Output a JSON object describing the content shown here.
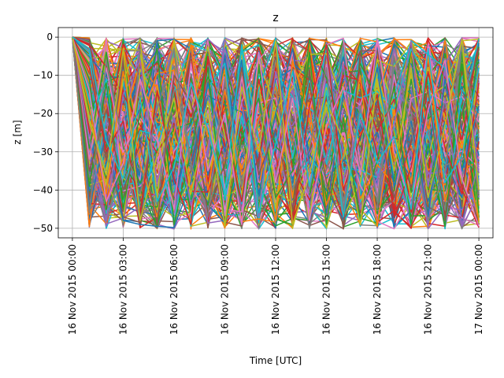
{
  "chart_data": {
    "type": "line",
    "title": "z",
    "xlabel": "Time  [UTC]",
    "ylabel": "z  [m]",
    "x_axis": {
      "start": "2015-11-16T00:00:00Z",
      "end": "2015-11-17T00:00:00Z",
      "ticks": [
        {
          "t": "2015-11-16T00:00:00Z",
          "label": "16 Nov 2015 00:00"
        },
        {
          "t": "2015-11-16T03:00:00Z",
          "label": "16 Nov 2015 03:00"
        },
        {
          "t": "2015-11-16T06:00:00Z",
          "label": "16 Nov 2015 06:00"
        },
        {
          "t": "2015-11-16T09:00:00Z",
          "label": "16 Nov 2015 09:00"
        },
        {
          "t": "2015-11-16T12:00:00Z",
          "label": "16 Nov 2015 12:00"
        },
        {
          "t": "2015-11-16T15:00:00Z",
          "label": "16 Nov 2015 15:00"
        },
        {
          "t": "2015-11-16T18:00:00Z",
          "label": "16 Nov 2015 18:00"
        },
        {
          "t": "2015-11-16T21:00:00Z",
          "label": "16 Nov 2015 21:00"
        },
        {
          "t": "2015-11-17T00:00:00Z",
          "label": "17 Nov 2015 00:00"
        }
      ],
      "tick_label_rotation": "vertical",
      "range": [
        "2015-11-15T23:10:00Z",
        "2015-11-17T00:50:00Z"
      ]
    },
    "y_axis": {
      "ticks": [
        0,
        -10,
        -20,
        -30,
        -40,
        -50
      ],
      "tick_labels": [
        "0",
        "−10",
        "−20",
        "−30",
        "−40",
        "−50"
      ],
      "ylim": [
        -52.5,
        2.5
      ]
    },
    "grid": true,
    "legend": "none",
    "palette": [
      "#1f77b4",
      "#ff7f0e",
      "#2ca02c",
      "#d62728",
      "#9467bd",
      "#8c564b",
      "#e377c2",
      "#7f7f7f",
      "#bcbd22",
      "#17becf"
    ],
    "series_description": "Many hundreds of particle trajectories, all starting at z = 0 m at 16 Nov 2015 00:00 and spanning the full range 0 to −50 m thereafter; sampled hourly.",
    "sample_times": [
      "2015-11-16T00:00:00Z",
      "2015-11-16T01:00:00Z",
      "2015-11-16T02:00:00Z",
      "2015-11-16T03:00:00Z",
      "2015-11-16T04:00:00Z",
      "2015-11-16T05:00:00Z",
      "2015-11-16T06:00:00Z",
      "2015-11-16T07:00:00Z",
      "2015-11-16T08:00:00Z",
      "2015-11-16T09:00:00Z",
      "2015-11-16T10:00:00Z",
      "2015-11-16T11:00:00Z",
      "2015-11-16T12:00:00Z",
      "2015-11-16T13:00:00Z",
      "2015-11-16T14:00:00Z",
      "2015-11-16T15:00:00Z",
      "2015-11-16T16:00:00Z",
      "2015-11-16T17:00:00Z",
      "2015-11-16T18:00:00Z",
      "2015-11-16T19:00:00Z",
      "2015-11-16T20:00:00Z",
      "2015-11-16T21:00:00Z",
      "2015-11-16T22:00:00Z",
      "2015-11-16T23:00:00Z",
      "2015-11-17T00:00:00Z"
    ],
    "series": [
      {
        "color": "#1f77b4",
        "values": [
          0,
          -44.5,
          -25,
          -48,
          -49,
          -49.5,
          -49.8,
          -38,
          -12,
          -30,
          -6,
          -41,
          -20,
          -3,
          -33,
          -46,
          -15,
          -27,
          -8,
          -39,
          -22,
          -47,
          -11,
          -35,
          -18
        ]
      },
      {
        "color": "#ff7f0e",
        "values": [
          0,
          -18,
          -41,
          -9,
          -33,
          -47,
          -25,
          -2,
          -40,
          -14,
          -36,
          -28,
          -48,
          -6,
          -22,
          -44,
          -31,
          -10,
          -49.5,
          -19,
          -38,
          -5,
          -43,
          -27,
          -48
        ]
      },
      {
        "color": "#2ca02c",
        "values": [
          0,
          -39,
          -12,
          -45,
          -20,
          -3,
          -49,
          -30,
          -8,
          -49.5,
          -26,
          -16,
          -42,
          -35,
          -4,
          -49,
          -21,
          -48,
          -32,
          -13,
          -49,
          -28,
          -49.5,
          -7,
          -46
        ]
      },
      {
        "color": "#d62728",
        "values": [
          0,
          -8,
          -30,
          -22,
          -46,
          -14,
          -37,
          -49,
          -5,
          -24,
          -43,
          -11,
          -31,
          -49,
          -18,
          -2,
          -40,
          -26,
          -15,
          -47,
          -34,
          -9,
          -29,
          -41,
          -12
        ]
      },
      {
        "color": "#9467bd",
        "values": [
          0,
          -27,
          -48,
          -15,
          -6,
          -38,
          -21,
          -44,
          -29,
          -3,
          -17,
          -47,
          -9,
          -25,
          -42,
          -31,
          -7,
          -45,
          -37,
          -23,
          -1,
          -39,
          -16,
          -49,
          -33
        ]
      },
      {
        "color": "#8c564b",
        "values": [
          0,
          -35,
          -19,
          -40,
          -28,
          -49,
          -10,
          -17,
          -46,
          -33,
          -8,
          -36,
          -24,
          -45,
          -12,
          -38,
          -49,
          -4,
          -21,
          -42,
          -27,
          -14,
          -48,
          -20,
          -3
        ]
      },
      {
        "color": "#e377c2",
        "values": [
          0,
          -14,
          -43,
          -33,
          -11,
          -26,
          -45,
          -7,
          -35,
          -20,
          -49,
          -4,
          -38,
          -16,
          -48,
          -23,
          -13,
          -36,
          -1,
          -30,
          -44,
          -19,
          -6,
          -37,
          -49.5
        ]
      },
      {
        "color": "#7f7f7f",
        "values": [
          0,
          -46,
          -6,
          -28,
          -41,
          -19,
          -3,
          -33,
          -47,
          -11,
          -39,
          -22,
          -14,
          -40,
          -29,
          -8,
          -45,
          -18,
          -43,
          -5,
          -24,
          -48,
          -35,
          -2,
          -26
        ]
      },
      {
        "color": "#bcbd22",
        "values": [
          0,
          -22,
          -36,
          -3,
          -48,
          -31,
          -16,
          -41,
          -20,
          -49.5,
          -13,
          -30,
          -1,
          -49,
          -36,
          -17,
          -27,
          -49,
          -11,
          -35,
          -8,
          -42,
          -23,
          -0.5,
          -40
        ]
      },
      {
        "color": "#17becf",
        "values": [
          0,
          -3,
          -27,
          -37,
          -16,
          -43,
          -34,
          -12,
          -24,
          -41,
          -2,
          -46,
          -28,
          -9,
          -39,
          -14,
          -47,
          -20,
          -33,
          -26,
          -45,
          -3,
          -38,
          -31,
          -8
        ]
      }
    ]
  }
}
